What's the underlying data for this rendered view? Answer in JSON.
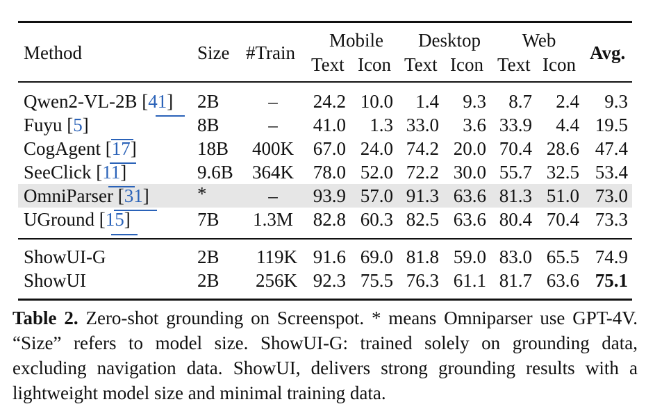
{
  "table": {
    "headers": {
      "method": "Method",
      "size": "Size",
      "train": "#Train",
      "mobile": "Mobile",
      "desktop": "Desktop",
      "web": "Web",
      "text": "Text",
      "icon": "Icon",
      "avg": "Avg."
    },
    "rows": [
      {
        "name": "Qwen2-VL-2B",
        "ref": "41",
        "size": "2B",
        "train": "–",
        "mt": "24.2",
        "mi": "10.0",
        "dt": "1.4",
        "di": "9.3",
        "wt": "8.7",
        "wi": "2.4",
        "avg": "9.3"
      },
      {
        "name": "Fuyu",
        "ref": "5",
        "size": "8B",
        "train": "–",
        "mt": "41.0",
        "mi": "1.3",
        "dt": "33.0",
        "di": "3.6",
        "wt": "33.9",
        "wi": "4.4",
        "avg": "19.5"
      },
      {
        "name": "CogAgent",
        "ref": "17",
        "size": "18B",
        "train": "400K",
        "mt": "67.0",
        "mi": "24.0",
        "dt": "74.2",
        "di": "20.0",
        "wt": "70.4",
        "wi": "28.6",
        "avg": "47.4"
      },
      {
        "name": "SeeClick",
        "ref": "11",
        "size": "9.6B",
        "train": "364K",
        "mt": "78.0",
        "mi": "52.0",
        "dt": "72.2",
        "di": "30.0",
        "wt": "55.7",
        "wi": "32.5",
        "avg": "53.4"
      },
      {
        "name": "OmniParser",
        "ref": "31",
        "size": "*",
        "train": "–",
        "mt": "93.9",
        "mi": "57.0",
        "dt": "91.3",
        "di": "63.6",
        "wt": "81.3",
        "wi": "51.0",
        "avg": "73.0"
      },
      {
        "name": "UGround",
        "ref": "15",
        "size": "7B",
        "train": "1.3M",
        "mt": "82.8",
        "mi": "60.3",
        "dt": "82.5",
        "di": "63.6",
        "wt": "80.4",
        "wi": "70.4",
        "avg": "73.3"
      }
    ],
    "ours": [
      {
        "name": "ShowUI-G",
        "size": "2B",
        "train": "119K",
        "mt": "91.6",
        "mi": "69.0",
        "dt": "81.8",
        "di": "59.0",
        "wt": "83.0",
        "wi": "65.5",
        "avg": "74.9"
      },
      {
        "name": "ShowUI",
        "size": "2B",
        "train": "256K",
        "mt": "92.3",
        "mi": "75.5",
        "dt": "76.3",
        "di": "61.1",
        "wt": "81.7",
        "wi": "63.6",
        "avg": "75.1"
      }
    ]
  },
  "caption": {
    "label": "Table 2.",
    "text": "Zero-shot grounding on Screenspot. * means Omniparser use GPT-4V. “Size” refers to model size. ShowUI-G: trained solely on grounding data, excluding navigation data. ShowUI, delivers strong grounding results with a lightweight model size and minimal training data."
  }
}
